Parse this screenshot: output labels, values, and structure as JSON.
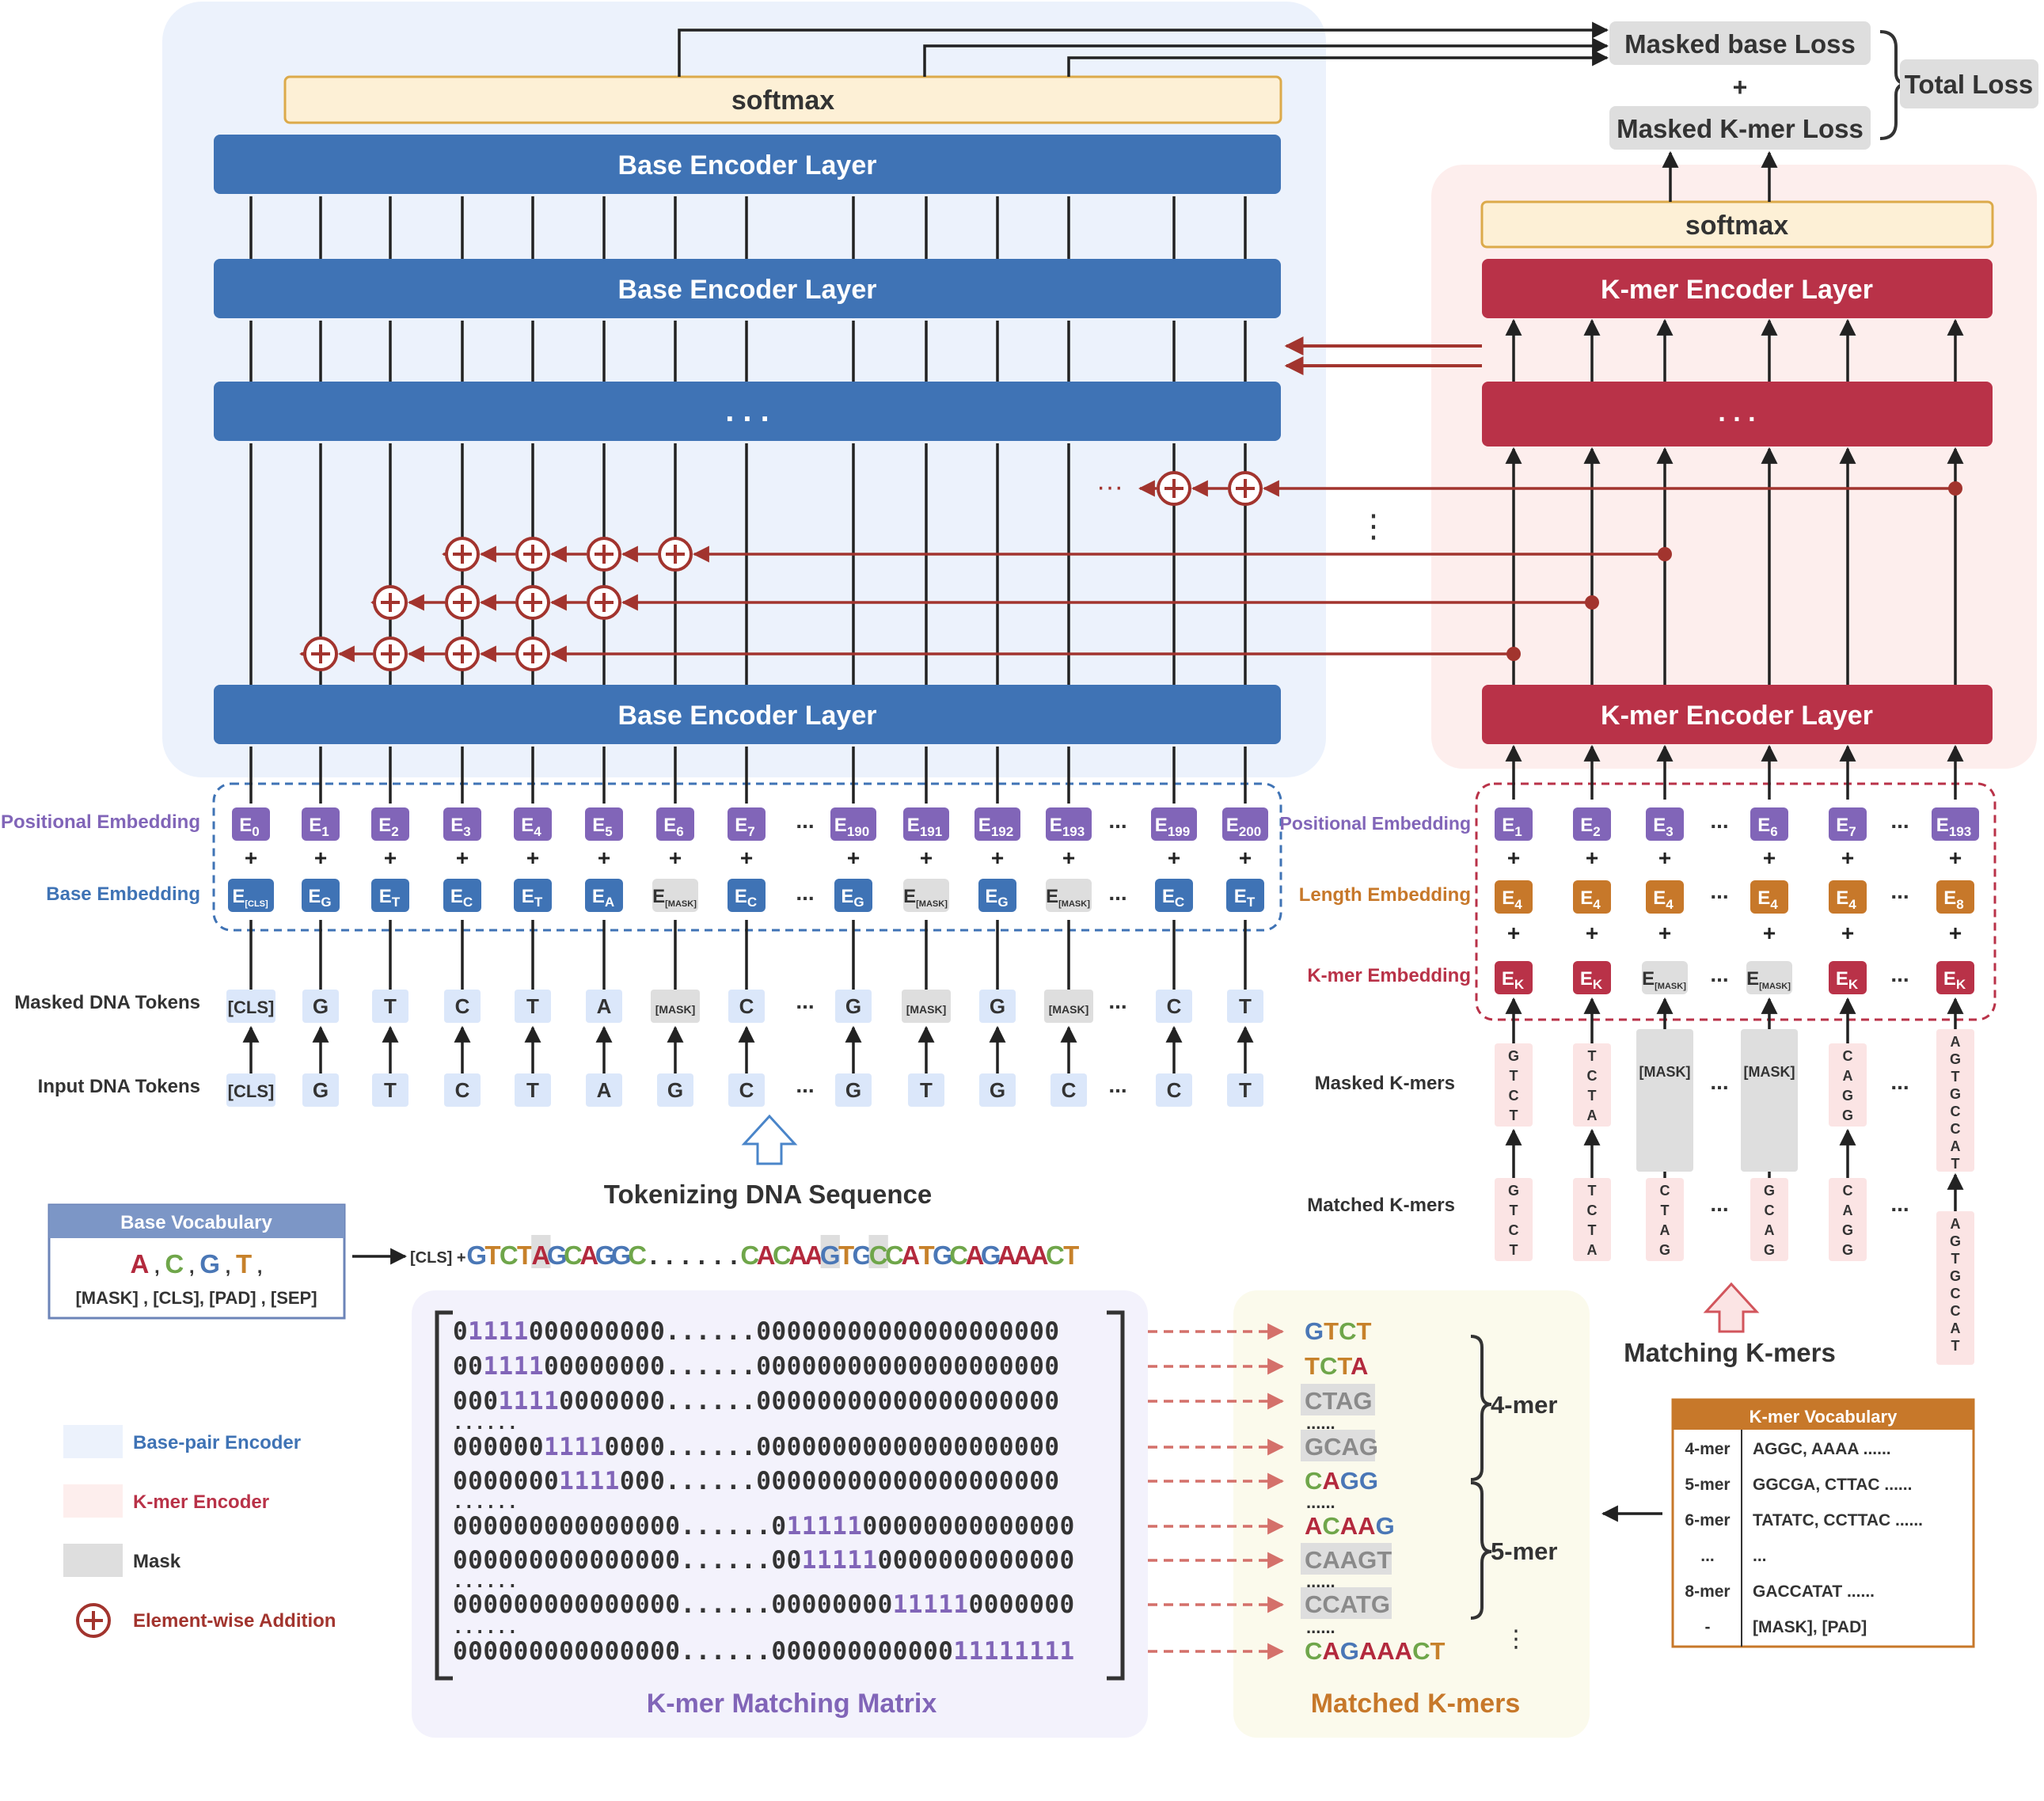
{
  "colors": {
    "base_blue": "#3f73b5",
    "kmer_red": "#b93248",
    "purple": "#8165b8",
    "orange": "#c7782a",
    "arrow_red": "#a2342e",
    "grey": "#dedede",
    "base_bg": "#ecf2fc",
    "kmer_bg": "#fdeeed",
    "matrix_bg": "#f3f2fc",
    "matched_bg": "#fbfaec",
    "softmax_fill": "#fdf0d6",
    "softmax_border": "#dcaa4a",
    "nuc_A": "#b3293d",
    "nuc_C": "#6fa64a",
    "nuc_G": "#4a77b6",
    "nuc_T": "#c7812a"
  },
  "loss": {
    "masked_base": "Masked base Loss",
    "plus": "+",
    "masked_kmer": "Masked K-mer Loss",
    "total": "Total Loss"
  },
  "base_encoder": {
    "softmax": "softmax",
    "layer_top": "Base Encoder Layer",
    "layer_second": "Base Encoder Layer",
    "layer_dots": ". . .",
    "layer_bottom": "Base Encoder Layer",
    "row_labels": {
      "positional": "Positional Embedding",
      "base": "Base Embedding",
      "masked_tokens": "Masked DNA Tokens",
      "input_tokens": "Input DNA Tokens"
    },
    "columns": [
      {
        "pos": "0",
        "base": "[CLS]",
        "base_mask": false,
        "masked": "[CLS]",
        "input": "[CLS]"
      },
      {
        "pos": "1",
        "base": "G",
        "base_mask": false,
        "masked": "G",
        "input": "G"
      },
      {
        "pos": "2",
        "base": "T",
        "base_mask": false,
        "masked": "T",
        "input": "T"
      },
      {
        "pos": "3",
        "base": "C",
        "base_mask": false,
        "masked": "C",
        "input": "C"
      },
      {
        "pos": "4",
        "base": "T",
        "base_mask": false,
        "masked": "T",
        "input": "T"
      },
      {
        "pos": "5",
        "base": "A",
        "base_mask": false,
        "masked": "A",
        "input": "A"
      },
      {
        "pos": "6",
        "base": "[MASK]",
        "base_mask": true,
        "masked": "[MASK]",
        "input": "G"
      },
      {
        "pos": "7",
        "base": "C",
        "base_mask": false,
        "masked": "C",
        "input": "C"
      },
      {
        "pos": "...",
        "base": "...",
        "base_mask": false,
        "masked": "...",
        "input": "...",
        "dots": true
      },
      {
        "pos": "190",
        "base": "G",
        "base_mask": false,
        "masked": "G",
        "input": "G"
      },
      {
        "pos": "191",
        "base": "[MASK]",
        "base_mask": true,
        "masked": "[MASK]",
        "input": "T"
      },
      {
        "pos": "192",
        "base": "G",
        "base_mask": false,
        "masked": "G",
        "input": "G"
      },
      {
        "pos": "193",
        "base": "[MASK]",
        "base_mask": true,
        "masked": "[MASK]",
        "input": "C"
      },
      {
        "pos": "...",
        "base": "...",
        "base_mask": false,
        "masked": "...",
        "input": "...",
        "dots": true
      },
      {
        "pos": "199",
        "base": "C",
        "base_mask": false,
        "masked": "C",
        "input": "C"
      },
      {
        "pos": "200",
        "base": "T",
        "base_mask": false,
        "masked": "T",
        "input": "T"
      }
    ],
    "tokenizing_label": "Tokenizing DNA Sequence",
    "dots_left": "···",
    "dots_vertical": "⋮"
  },
  "kmer_encoder": {
    "softmax": "softmax",
    "layer_top": "K-mer Encoder Layer",
    "layer_dots": ". . .",
    "layer_bottom": "K-mer Encoder Layer",
    "row_labels": {
      "positional": "Positional Embedding",
      "length": "Length Embedding",
      "kmer": "K-mer Embedding",
      "masked": "Masked K-mers",
      "matched": "Matched K-mers"
    },
    "columns": [
      {
        "pos": "1",
        "len": "4",
        "kmer": "K",
        "kmer_mask": false,
        "masked": "GTCT",
        "matched": "GTCT"
      },
      {
        "pos": "2",
        "len": "4",
        "kmer": "K",
        "kmer_mask": false,
        "masked": "TCTA",
        "matched": "TCTA"
      },
      {
        "pos": "3",
        "len": "4",
        "kmer": "[MASK]",
        "kmer_mask": true,
        "masked": "[MASK]",
        "matched": "CTAG"
      },
      {
        "pos": "...",
        "len": "...",
        "kmer": "...",
        "dots": true,
        "masked": "...",
        "matched": "..."
      },
      {
        "pos": "6",
        "len": "4",
        "kmer": "[MASK]",
        "kmer_mask": true,
        "masked": "[MASK]",
        "matched": "GCAG"
      },
      {
        "pos": "7",
        "len": "4",
        "kmer": "K",
        "kmer_mask": false,
        "masked": "CAGG",
        "matched": "CAGG"
      },
      {
        "pos": "...",
        "len": "...",
        "kmer": "...",
        "dots": true,
        "masked": "...",
        "matched": "..."
      },
      {
        "pos": "193",
        "len": "8",
        "kmer": "K",
        "kmer_mask": false,
        "masked": "AGTGCCAT",
        "matched": "AGTGCCAT"
      }
    ],
    "matching_label": "Matching K-mers"
  },
  "base_vocab": {
    "title": "Base Vocabulary",
    "nucleotides": [
      "A",
      "C",
      "G",
      "T"
    ],
    "specials": "[MASK] ,  [CLS], [PAD] , [SEP]"
  },
  "sequence": {
    "prefix": "[CLS] +",
    "text": "GTCTAGCAGGC......CACAAGTGCCATGCAGAAACT",
    "masked_indices": [
      4,
      22,
      25
    ]
  },
  "matrix": {
    "title": "K-mer Matching Matrix",
    "rows": [
      "01111000000000......00000000000000000000",
      "00111100000000......00000000000000000000",
      "00011110000000......00000000000000000000",
      "......",
      "00000011110000......00000000000000000000",
      "00000001111000......00000000000000000000",
      "......",
      "000000000000000......01111100000000000000",
      "000000000000000......00111110000000000000",
      "......",
      "000000000000000......00000000111110000000",
      "......",
      "000000000000000......00000000000011111111"
    ]
  },
  "matched": {
    "title": "Matched K-mers",
    "items": [
      {
        "text": "GTCT",
        "mask": false
      },
      {
        "text": "TCTA",
        "mask": false
      },
      {
        "text": "CTAG",
        "mask": true
      },
      {
        "text": "......",
        "mask": false,
        "dots": true
      },
      {
        "text": "GCAG",
        "mask": true
      },
      {
        "text": "CAGG",
        "mask": false
      },
      {
        "text": "......",
        "mask": false,
        "dots": true
      },
      {
        "text": "ACAAG",
        "mask": false
      },
      {
        "text": "CAAGT",
        "mask": true
      },
      {
        "text": "......",
        "mask": false,
        "dots": true
      },
      {
        "text": "CCATG",
        "mask": true
      },
      {
        "text": "......",
        "mask": false,
        "dots": true
      },
      {
        "text": "CAGAAACT",
        "mask": false
      }
    ],
    "group_4": "4-mer",
    "group_5": "5-mer",
    "more": "⋮"
  },
  "kmer_vocab": {
    "title": "K-mer Vocabulary",
    "rows": [
      {
        "k": "4-mer",
        "v": "AGGC, AAAA ......"
      },
      {
        "k": "5-mer",
        "v": "GGCGA, CTTAC ......"
      },
      {
        "k": "6-mer",
        "v": "TATATC, CCTTAC ......"
      },
      {
        "k": "...",
        "v": "..."
      },
      {
        "k": "8-mer",
        "v": "GACCATAT ......"
      },
      {
        "k": "-",
        "v": "[MASK], [PAD]"
      }
    ]
  },
  "legend": [
    {
      "label": "Base-pair Encoder",
      "swatch": "base_bg"
    },
    {
      "label": "K-mer Encoder",
      "swatch": "kmer_bg"
    },
    {
      "label": "Mask",
      "swatch": "grey"
    },
    {
      "label": "Element-wise Addition",
      "swatch": "circle"
    }
  ]
}
